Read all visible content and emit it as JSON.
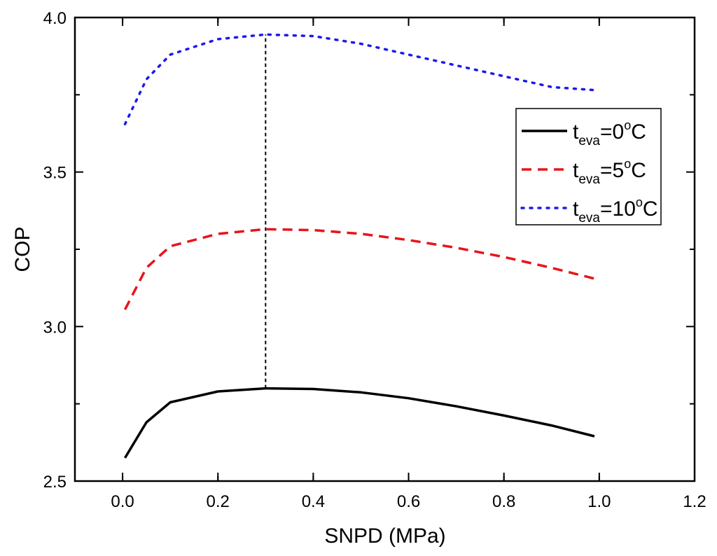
{
  "chart_data": {
    "type": "line",
    "xlabel": "SNPD (MPa)",
    "ylabel": "COP",
    "xlim": [
      -0.1,
      1.2
    ],
    "ylim": [
      2.5,
      4.0
    ],
    "xticks": [
      0.0,
      0.2,
      0.4,
      0.6,
      0.8,
      1.0,
      1.2
    ],
    "xtick_labels": [
      "0.0",
      "0.2",
      "0.4",
      "0.6",
      "0.8",
      "1.0",
      "1.2"
    ],
    "yticks": [
      2.5,
      3.0,
      3.5,
      4.0
    ],
    "ytick_labels": [
      "2.5",
      "3.0",
      "3.5",
      "4.0"
    ],
    "x": [
      0.005,
      0.05,
      0.1,
      0.2,
      0.3,
      0.4,
      0.5,
      0.6,
      0.7,
      0.8,
      0.9,
      0.99
    ],
    "series": [
      {
        "name": "t_eva=0°C",
        "legend": {
          "main": "t",
          "sub": "eva",
          "eq": "=0",
          "sup": "o",
          "unit": "C"
        },
        "color": "#000000",
        "style": "solid",
        "values": [
          2.575,
          2.69,
          2.755,
          2.79,
          2.8,
          2.798,
          2.787,
          2.768,
          2.742,
          2.712,
          2.68,
          2.645
        ]
      },
      {
        "name": "t_eva=5°C",
        "legend": {
          "main": "t",
          "sub": "eva",
          "eq": "=5",
          "sup": "o",
          "unit": "C"
        },
        "color": "#e8141a",
        "style": "dashed",
        "values": [
          3.055,
          3.19,
          3.26,
          3.3,
          3.315,
          3.312,
          3.3,
          3.28,
          3.255,
          3.225,
          3.19,
          3.155
        ]
      },
      {
        "name": "t_eva=10°C",
        "legend": {
          "main": "t",
          "sub": "eva",
          "eq": "=10",
          "sup": "o",
          "unit": "C"
        },
        "color": "#1a1af0",
        "style": "dotted",
        "values": [
          3.655,
          3.8,
          3.88,
          3.93,
          3.945,
          3.94,
          3.915,
          3.88,
          3.845,
          3.81,
          3.775,
          3.765
        ]
      }
    ],
    "annotations": [
      {
        "type": "vertical-dashed-line",
        "x": 0.3,
        "y_from": 2.8,
        "y_to": 3.945,
        "color": "#000000"
      }
    ],
    "legend_position": "right",
    "grid": false
  }
}
